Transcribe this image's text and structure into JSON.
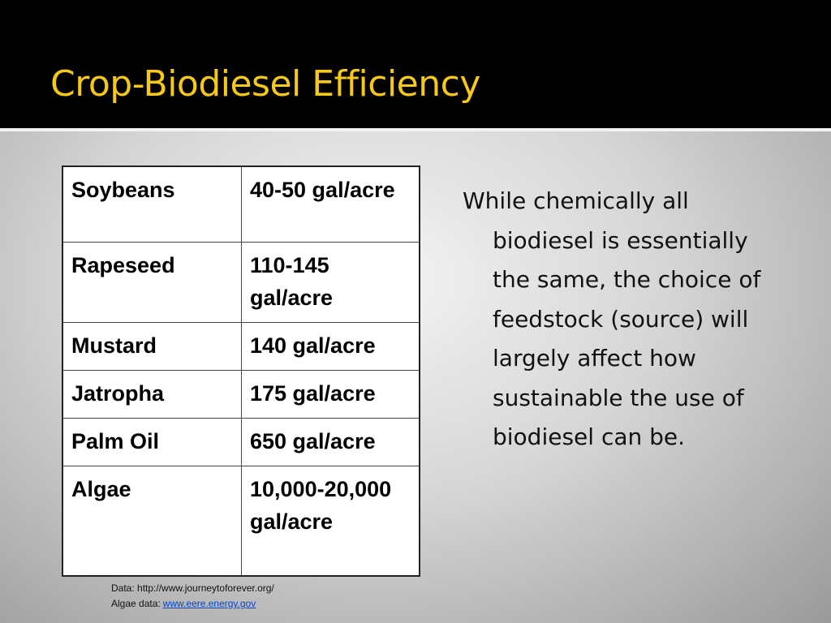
{
  "header": {
    "title": "Crop-Biodiesel Efficiency"
  },
  "table": {
    "rows": [
      [
        "Soybeans",
        "40-50 gal/acre"
      ],
      [
        "Rapeseed",
        "110-145 gal/acre"
      ],
      [
        "Mustard",
        "140 gal/acre"
      ],
      [
        "Jatropha",
        "175 gal/acre"
      ],
      [
        "Palm Oil",
        "650 gal/acre"
      ],
      [
        "Algae",
        "10,000-20,000 gal/acre"
      ]
    ]
  },
  "body": {
    "text": "While chemically all biodiesel is essentially the same, the choice of feedstock (source) will largely affect how sustainable the use of biodiesel can be."
  },
  "notes": {
    "line1": "Data: http://www.journeytoforever.org/",
    "line2_label": "Algae data:",
    "line2_link": "www.eere.energy.gov"
  }
}
